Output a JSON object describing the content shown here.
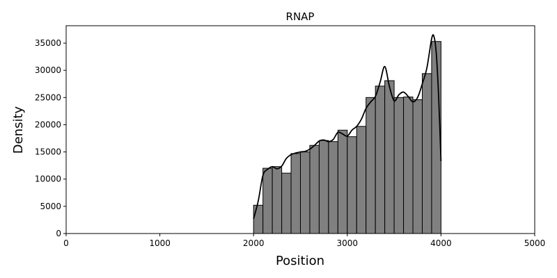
{
  "chart_data": {
    "type": "bar",
    "title": "RNAP",
    "xlabel": "Position",
    "ylabel": "Density",
    "xlim": [
      0,
      5000
    ],
    "ylim": [
      0,
      38200
    ],
    "xticks": [
      0,
      1000,
      2000,
      3000,
      4000,
      5000
    ],
    "yticks": [
      0,
      5000,
      10000,
      15000,
      20000,
      25000,
      30000,
      35000
    ],
    "grid": false,
    "bar_color": "#808080",
    "edge_color": "#000000",
    "line_color": "#000000",
    "bins": {
      "start": 2000,
      "width": 100,
      "values": [
        5200,
        12000,
        12300,
        11100,
        14700,
        15000,
        16200,
        17100,
        16900,
        19000,
        17800,
        19700,
        25000,
        27100,
        28100,
        25000,
        25100,
        24600,
        29400,
        35300
      ]
    },
    "kde": {
      "x": [
        2000,
        2050,
        2100,
        2150,
        2200,
        2250,
        2300,
        2350,
        2400,
        2450,
        2500,
        2550,
        2600,
        2650,
        2700,
        2750,
        2800,
        2850,
        2900,
        2950,
        3000,
        3050,
        3100,
        3150,
        3200,
        3250,
        3300,
        3350,
        3400,
        3450,
        3500,
        3550,
        3600,
        3650,
        3700,
        3750,
        3800,
        3850,
        3900,
        3925,
        3950,
        3975,
        4000
      ],
      "y": [
        2700,
        6000,
        10700,
        11800,
        12300,
        11900,
        12400,
        13800,
        14500,
        14800,
        15000,
        15100,
        15500,
        16200,
        17000,
        17200,
        16900,
        17300,
        18600,
        18300,
        17900,
        19000,
        19700,
        21000,
        23000,
        24200,
        25200,
        27800,
        30700,
        27000,
        24400,
        25500,
        26000,
        25200,
        24200,
        25000,
        27500,
        30500,
        35800,
        36200,
        33000,
        25000,
        13300
      ]
    }
  }
}
